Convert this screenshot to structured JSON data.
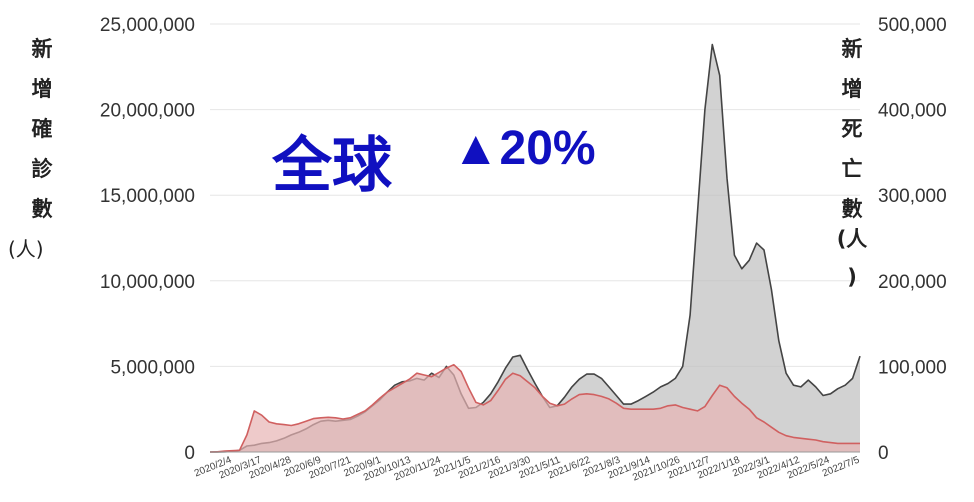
{
  "chart_data": {
    "type": "area",
    "left_axis_label": [
      "新",
      "增",
      "確",
      "診",
      "數"
    ],
    "left_axis_unit": "(人)",
    "right_axis_label": [
      "新",
      "增",
      "死",
      "亡",
      "數"
    ],
    "right_axis_unit": [
      "(人",
      ")"
    ],
    "annotation": {
      "text": "全球",
      "change": "▲20%",
      "color": "#1010c0"
    },
    "y_left": {
      "ylim": [
        0,
        25000000
      ],
      "ticks": [
        "0",
        "5,000,000",
        "10,000,000",
        "15,000,000",
        "20,000,000",
        "25,000,000"
      ]
    },
    "y_right": {
      "ylim": [
        0,
        500000
      ],
      "ticks": [
        "0",
        "100,000",
        "200,000",
        "300,000",
        "400,000",
        "500,000"
      ]
    },
    "x_tick_labels": [
      "2020/2/4",
      "2020/3/17",
      "2020/4/28",
      "2020/6/9",
      "2020/7/21",
      "2020/9/1",
      "2020/10/13",
      "2020/11/24",
      "2021/1/5",
      "2021/2/16",
      "2021/3/30",
      "2021/5/11",
      "2021/6/22",
      "2021/8/3",
      "2021/9/14",
      "2021/10/26",
      "2021/12/7",
      "2022/1/18",
      "2022/3/1",
      "2022/4/12",
      "2022/5/24",
      "2022/7/5"
    ],
    "grid": true,
    "series": [
      {
        "name": "",
        "axis": "left",
        "color": "#444444",
        "fill": "#bfbfbf",
        "values": [
          500,
          8000,
          10000,
          30000,
          100000,
          350000,
          400000,
          500000,
          550000,
          650000,
          800000,
          1000000,
          1150000,
          1350000,
          1600000,
          1800000,
          1850000,
          1800000,
          1850000,
          1900000,
          2100000,
          2350000,
          2700000,
          3050000,
          3500000,
          3900000,
          4100000,
          4150000,
          4300000,
          4200000,
          4600000,
          4350000,
          5000000,
          4500000,
          3400000,
          2550000,
          2600000,
          2900000,
          3400000,
          4100000,
          4900000,
          5550000,
          5650000,
          4800000,
          4000000,
          3250000,
          2600000,
          2700000,
          3200000,
          3800000,
          4250000,
          4550000,
          4550000,
          4300000,
          3800000,
          3300000,
          2800000,
          2800000,
          3000000,
          3250000,
          3500000,
          3800000,
          4000000,
          4300000,
          5000000,
          8000000,
          14000000,
          20000000,
          23800000,
          22000000,
          16000000,
          11500000,
          10700000,
          11200000,
          12200000,
          11800000,
          9500000,
          6500000,
          4600000,
          3900000,
          3800000,
          4200000,
          3800000,
          3300000,
          3400000,
          3700000,
          3900000,
          4300000,
          5600000
        ]
      },
      {
        "name": "",
        "axis": "right",
        "color": "#d06060",
        "fill": "#e7b4b4",
        "values": [
          20,
          200,
          1000,
          1500,
          2000,
          20000,
          48000,
          43000,
          35000,
          33000,
          32000,
          31000,
          33000,
          36000,
          39000,
          40000,
          40500,
          40000,
          38500,
          40000,
          44000,
          48000,
          55000,
          63000,
          70000,
          75000,
          80000,
          85000,
          92000,
          90000,
          88000,
          93000,
          98000,
          102000,
          94000,
          75000,
          58000,
          55000,
          60000,
          72000,
          85000,
          92000,
          89000,
          82000,
          75000,
          65000,
          57000,
          54000,
          56000,
          62000,
          67000,
          68000,
          67000,
          65000,
          62000,
          57000,
          51000,
          50000,
          50000,
          50000,
          50000,
          51000,
          54000,
          55000,
          52000,
          50000,
          48000,
          53000,
          66000,
          78000,
          75000,
          65000,
          57000,
          50000,
          40000,
          35000,
          29000,
          23000,
          19000,
          17000,
          16000,
          15000,
          14000,
          12000,
          11000,
          10000,
          10000,
          10000,
          10000
        ]
      }
    ]
  }
}
